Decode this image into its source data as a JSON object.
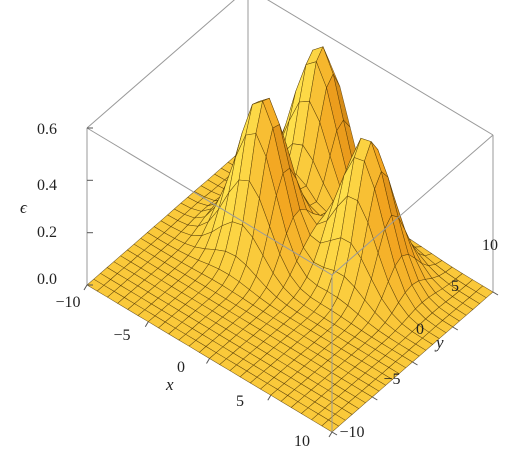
{
  "chart_data": {
    "type": "surface3d",
    "title": "",
    "xlabel": "x",
    "ylabel": "y",
    "zlabel": "ϵ",
    "xlim": [
      -10,
      10
    ],
    "ylim": [
      -10,
      10
    ],
    "zlim": [
      0,
      0.6
    ],
    "x_ticks": [
      "−10",
      "−5",
      "0",
      "5",
      "10"
    ],
    "y_ticks": [
      "−10",
      "−5",
      "0",
      "5",
      "10"
    ],
    "z_ticks": [
      "0.0",
      "0.2",
      "0.4",
      "0.6"
    ],
    "colors": {
      "surface": "#f2a21e",
      "highlight": "#ffe24d",
      "shadow": "#7a4200",
      "mesh": "#4a3000"
    },
    "mesh_lines": 25,
    "peaks": [
      {
        "x": -3.5,
        "y": 2.0,
        "height": 0.59
      },
      {
        "x": -3.5,
        "y": 9.0,
        "height": 0.59
      },
      {
        "x": 3.0,
        "y": 5.0,
        "height": 0.53
      }
    ]
  }
}
